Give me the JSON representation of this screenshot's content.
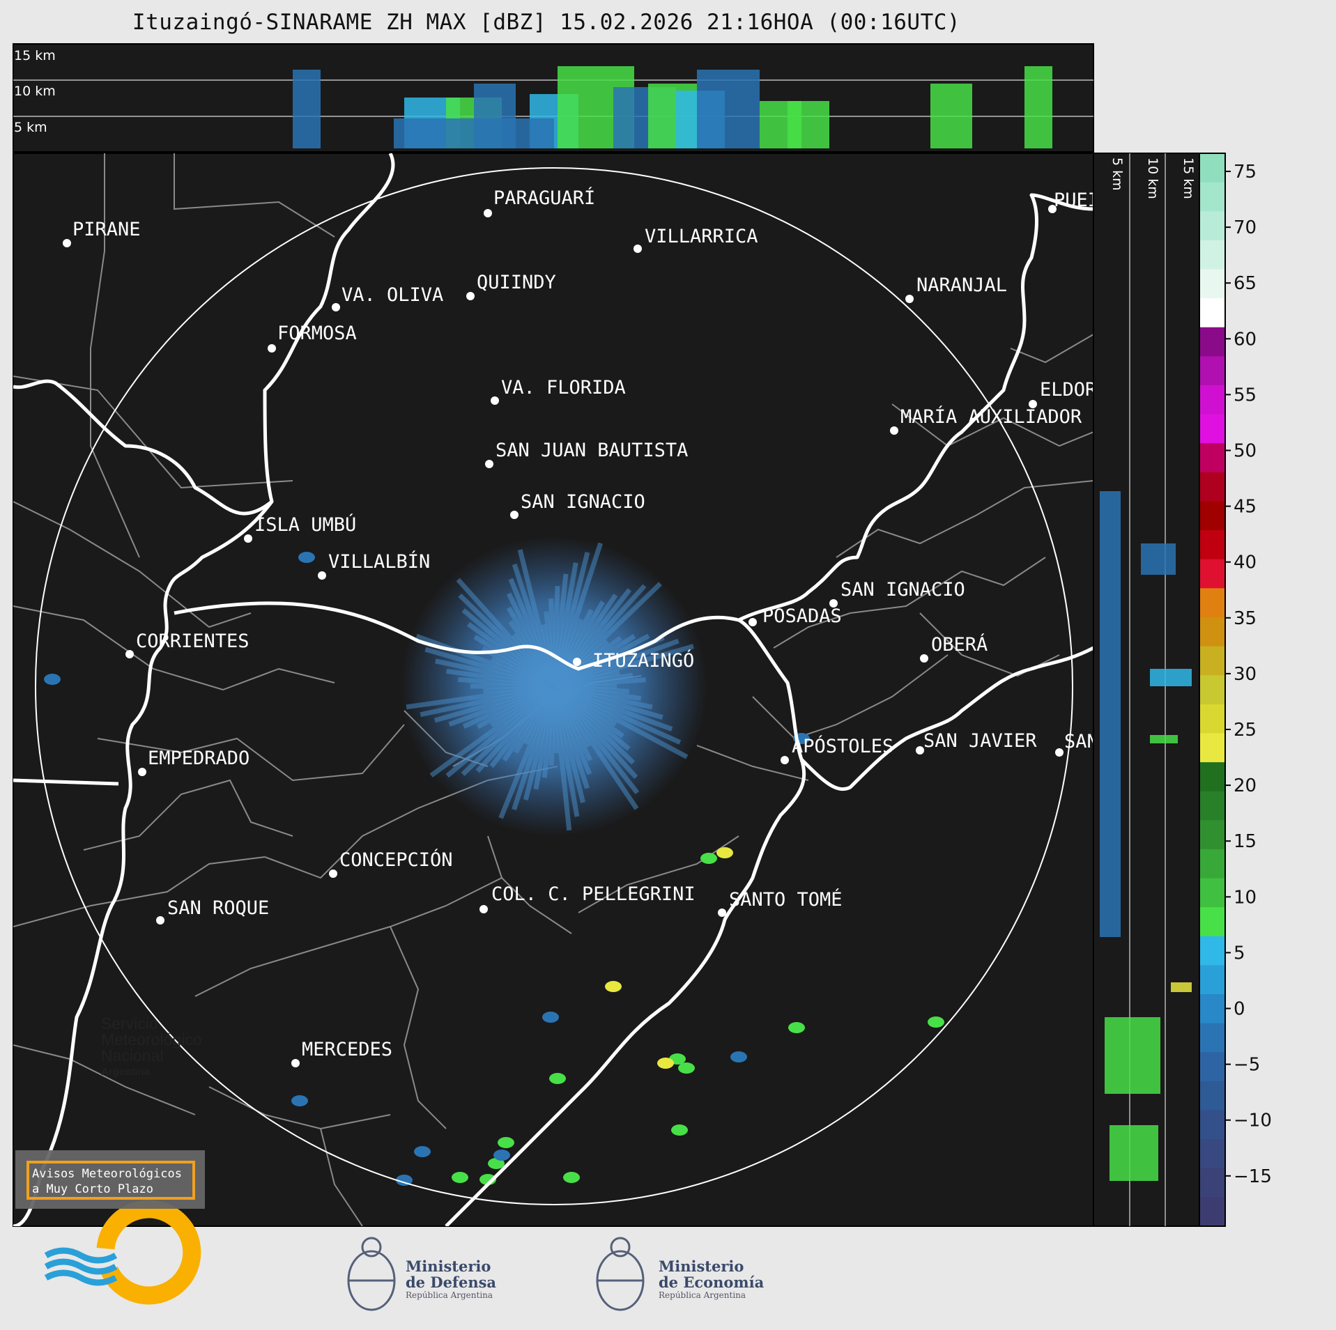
{
  "header": {
    "title": "Ituzaingó-SINARAME ZH MAX [dBZ] 15.02.2026 21:16HOA (00:16UTC)"
  },
  "top_panel": {
    "labels": [
      "15 km",
      "10 km",
      "5 km"
    ]
  },
  "side_panel": {
    "labels": [
      "5 km",
      "10 km",
      "15 km"
    ]
  },
  "colorbar": {
    "ticks": [
      "75",
      "70",
      "65",
      "60",
      "55",
      "50",
      "45",
      "40",
      "35",
      "30",
      "25",
      "20",
      "15",
      "10",
      "5",
      "0",
      "−5",
      "−10",
      "−15"
    ],
    "colors": [
      "#8fdfbf",
      "#a3e6cb",
      "#b8ecd8",
      "#d0f2e4",
      "#e8f8f1",
      "#ffffff",
      "#8a0a8a",
      "#b010b0",
      "#d010d0",
      "#e010e0",
      "#c00060",
      "#b00020",
      "#a00000",
      "#c00010",
      "#e01030",
      "#e08010",
      "#d09010",
      "#c8b020",
      "#c8c830",
      "#d8d830",
      "#e8e840",
      "#207020",
      "#288028",
      "#309030",
      "#38a838",
      "#40c040",
      "#48e048",
      "#30b8e8",
      "#2aa0d8",
      "#2888c8",
      "#2a74b4",
      "#2e64a4",
      "#2e5a96",
      "#33508a",
      "#384880",
      "#3a4278",
      "#3d3c70"
    ],
    "color_names": [
      "high-reflectivity-green",
      "pale-green",
      "white",
      "purple",
      "magenta",
      "red",
      "orange",
      "yellow",
      "green",
      "blue",
      "dark-blue"
    ]
  },
  "map": {
    "cities": [
      {
        "name": "PARAGUARÍ"
      },
      {
        "name": "VILLARRICA"
      },
      {
        "name": "PIRANE"
      },
      {
        "name": "QUIINDY"
      },
      {
        "name": "VA. OLIVA"
      },
      {
        "name": "NARANJAL"
      },
      {
        "name": "FORMOSA"
      },
      {
        "name": "VA. FLORIDA"
      },
      {
        "name": "ELDOR"
      },
      {
        "name": "MARÍA AUXILIADOR"
      },
      {
        "name": "SAN JUAN BAUTISTA"
      },
      {
        "name": "SAN IGNACIO"
      },
      {
        "name": "ISLA UMBÚ"
      },
      {
        "name": "VILLALBÍN"
      },
      {
        "name": "SAN IGNACIO"
      },
      {
        "name": "POSADAS"
      },
      {
        "name": "CORRIENTES"
      },
      {
        "name": "ITUZAINGÓ"
      },
      {
        "name": "OBERÁ"
      },
      {
        "name": "APÓSTOLES"
      },
      {
        "name": "SAN JAVIER"
      },
      {
        "name": "SAN"
      },
      {
        "name": "EMPEDRADO"
      },
      {
        "name": "CONCEPCIÓN"
      },
      {
        "name": "COL. C. PELLEGRINI"
      },
      {
        "name": "SANTO TOMÉ"
      },
      {
        "name": "SAN ROQUE"
      },
      {
        "name": "MERCEDES"
      },
      {
        "name": "PUEI"
      }
    ]
  },
  "warning_box": {
    "line1": "Avisos Meteorológicos",
    "line2": "a Muy Corto Plazo"
  },
  "logos": {
    "smn": {
      "line1": "Servicio",
      "line2": "Meteorológico",
      "line3": "Nacional",
      "line4": "Argentina"
    },
    "defensa": {
      "line1": "Ministerio",
      "line2": "de Defensa",
      "line3": "República Argentina"
    },
    "economia": {
      "line1": "Ministerio",
      "line2": "de Economía",
      "line3": "República Argentina"
    }
  },
  "style": {
    "map_bg": "#1a1a1a",
    "border": "#ffffff",
    "province_lines": "#888888"
  }
}
